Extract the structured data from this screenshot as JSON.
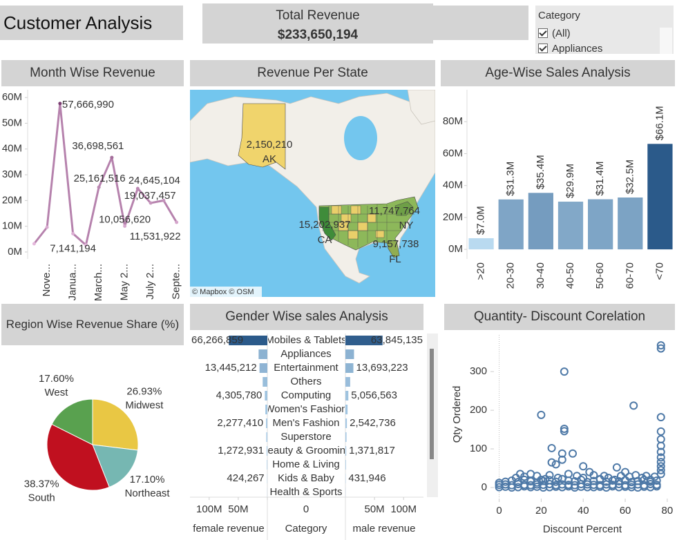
{
  "dashboard": {
    "title": "Customer Analysis",
    "kpi_label": "Total Revenue",
    "kpi_value": "$233,650,194",
    "filter": {
      "title": "Category",
      "options": [
        "(All)",
        "Appliances"
      ]
    }
  },
  "chart_data": [
    {
      "type": "line",
      "title": "Month Wise Revenue",
      "categories": [
        null,
        "Nove...",
        null,
        "Janua...",
        null,
        "March...",
        null,
        "May 2...",
        null,
        "July 2...",
        null,
        "Septe..."
      ],
      "values": [
        3200000,
        9600000,
        57666990,
        7141194,
        2700000,
        25161516,
        36698561,
        10056620,
        24645104,
        19037457,
        20000000,
        11531922
      ],
      "value_labels": [
        null,
        null,
        "57,666,990",
        "7,141,194",
        null,
        "25,161,516",
        "36,698,561",
        "10,056,620",
        "24,645,104",
        "19,037,457",
        null,
        "11,531,922"
      ],
      "color_range": [
        "#e6b9dd",
        "#7b3f72"
      ],
      "ylim": [
        -2700000,
        63000000
      ],
      "yticks": [
        {
          "value": 0,
          "label": "0M"
        },
        {
          "value": 10000000,
          "label": "10M"
        },
        {
          "value": 20000000,
          "label": "20M"
        },
        {
          "value": 30000000,
          "label": "30M"
        },
        {
          "value": 40000000,
          "label": "40M"
        },
        {
          "value": 50000000,
          "label": "50M"
        },
        {
          "value": 60000000,
          "label": "60M"
        }
      ]
    },
    {
      "type": "map",
      "title": "Revenue Per State",
      "regions": [
        "AK",
        "CA",
        "NY",
        "FL"
      ],
      "values": [
        2150210,
        15202937,
        11747764,
        9157738
      ],
      "value_labels": [
        "2,150,210",
        "15,202,937",
        "11,747,764",
        "9,157,738"
      ],
      "color_range": [
        "#f0d46c",
        "#3f8c3a"
      ],
      "attribution": "© Mapbox © OSM"
    },
    {
      "type": "bar",
      "title": "Age-Wise Sales Analysis",
      "categories": [
        ">20",
        "20-30",
        "30-40",
        "40-50",
        "50-60",
        "60-70",
        "<70"
      ],
      "values": [
        7000000,
        31300000,
        35400000,
        29900000,
        31400000,
        32500000,
        66100000
      ],
      "value_labels": [
        "$7.0M",
        "$31.3M",
        "$35.4M",
        "$29.9M",
        "$31.4M",
        "$32.5M",
        "$66.1M"
      ],
      "color_range": [
        "#b9daf0",
        "#2b5a8a"
      ],
      "ylim": [
        -6000000,
        100000000
      ],
      "yticks": [
        {
          "value": 0,
          "label": "0M"
        },
        {
          "value": 20000000,
          "label": "20M"
        },
        {
          "value": 40000000,
          "label": "40M"
        },
        {
          "value": 60000000,
          "label": "60M"
        },
        {
          "value": 80000000,
          "label": "80M"
        }
      ]
    },
    {
      "type": "pie",
      "title": "Region Wise Revenue Share (%)",
      "categories": [
        "Midwest",
        "Northeast",
        "South",
        "West"
      ],
      "values": [
        26.93,
        17.1,
        38.37,
        17.6
      ],
      "value_labels": [
        "26.93%",
        "17.10%",
        "38.37%",
        "17.60%"
      ],
      "colors": [
        "#e9c744",
        "#76b7b2",
        "#c0101f",
        "#59a14f"
      ]
    },
    {
      "type": "butterfly",
      "title": "Gender Wise sales Analysis",
      "categories": [
        "Mobiles & Tablets",
        "Appliances",
        "Entertainment",
        "Others",
        "Computing",
        "Women's Fashion",
        "Men's Fashion",
        "Superstore",
        "Beauty & Grooming",
        "Home & Living",
        "Kids & Baby",
        "Health & Sports"
      ],
      "category_label": "Category",
      "series": [
        {
          "name": "female revenue",
          "values": [
            66266859,
            15000000,
            13445212,
            8000000,
            4305780,
            3400000,
            2277410,
            1800000,
            1272931,
            900000,
            424267,
            200000
          ],
          "value_labels": [
            "66,266,859",
            null,
            "13,445,212",
            null,
            "4,305,780",
            null,
            "2,277,410",
            null,
            "1,272,931",
            null,
            "424,267",
            null
          ]
        },
        {
          "name": "male revenue",
          "values": [
            63845135,
            14800000,
            13693223,
            8200000,
            5056563,
            3700000,
            2542736,
            1900000,
            1371817,
            950000,
            431946,
            220000
          ],
          "value_labels": [
            "63,845,135",
            null,
            "13,693,223",
            null,
            "5,056,563",
            null,
            "2,542,736",
            null,
            "1,371,817",
            null,
            "431,946",
            null
          ]
        }
      ],
      "color_range": [
        "#a8cbe6",
        "#2b5a8a"
      ],
      "xlim": [
        0,
        133000000
      ],
      "xticks": [
        0,
        {
          "value": 50000000,
          "label": "50M"
        },
        {
          "value": 100000000,
          "label": "100M"
        }
      ]
    },
    {
      "type": "scatter",
      "title": "Quantity- Discount Corelation",
      "x_label": "Discount Percent",
      "y_label": "Qty Ordered",
      "x": [
        77,
        77,
        31,
        64,
        20,
        77,
        31,
        31,
        77,
        77,
        77,
        77,
        77,
        77,
        77,
        77,
        77,
        25,
        30,
        35,
        30,
        25,
        27,
        40,
        56,
        60,
        43,
        15,
        10,
        12,
        18,
        8,
        22,
        24,
        33,
        37,
        45,
        50,
        52,
        58,
        62,
        65,
        68,
        70,
        72,
        74,
        48,
        55,
        40,
        28,
        20,
        15,
        0,
        3,
        6,
        9,
        12,
        15,
        18,
        21,
        24,
        27,
        30,
        33,
        36,
        39,
        42,
        45,
        48,
        51,
        54,
        57,
        60,
        63,
        66,
        69,
        72,
        75,
        0,
        3,
        6,
        9,
        12,
        15,
        18,
        21,
        24,
        27,
        30,
        33,
        36,
        39,
        42,
        45,
        48,
        51,
        54,
        57,
        60,
        63,
        66,
        69,
        72,
        75,
        0,
        3,
        6,
        9,
        12,
        15,
        18,
        21,
        24,
        27,
        30,
        33,
        36,
        39,
        42,
        45,
        48,
        51,
        54,
        57,
        60,
        63,
        66,
        69,
        72,
        75
      ],
      "y": [
        368,
        360,
        300,
        212,
        188,
        182,
        152,
        146,
        145,
        125,
        108,
        92,
        78,
        66,
        55,
        45,
        35,
        102,
        88,
        88,
        72,
        65,
        60,
        55,
        52,
        40,
        40,
        35,
        35,
        28,
        30,
        25,
        22,
        32,
        35,
        30,
        32,
        30,
        25,
        30,
        28,
        32,
        25,
        30,
        20,
        28,
        22,
        20,
        25,
        25,
        20,
        18,
        1,
        2,
        0,
        1,
        3,
        1,
        2,
        0,
        1,
        2,
        1,
        3,
        0,
        2,
        1,
        1,
        2,
        0,
        3,
        1,
        2,
        1,
        0,
        2,
        1,
        3,
        7,
        8,
        6,
        9,
        7,
        6,
        8,
        7,
        9,
        6,
        8,
        7,
        6,
        9,
        8,
        7,
        6,
        8,
        7,
        9,
        6,
        7,
        8,
        6,
        9,
        7,
        12,
        15,
        18,
        14,
        20,
        16,
        13,
        17,
        19,
        15,
        22,
        18,
        16,
        20,
        14,
        17,
        21,
        15,
        18,
        16,
        19,
        14,
        17,
        20,
        15,
        18
      ],
      "color": "#4e79a7",
      "xlim": [
        -1.5,
        83
      ],
      "ylim": [
        -25,
        395
      ],
      "xticks": [
        0,
        20,
        40,
        60,
        80
      ],
      "yticks": [
        0,
        100,
        200,
        300
      ]
    }
  ]
}
